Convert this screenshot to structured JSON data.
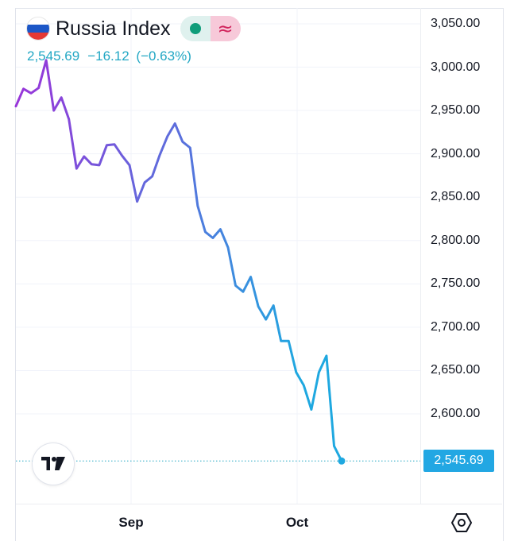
{
  "header": {
    "title": "Russia Index",
    "flag_icon": "russia-flag-icon",
    "status_icon": "market-open-dot-icon",
    "delayed_icon": "delayed-data-icon",
    "delayed_symbol": "≈",
    "last": "2,545.69",
    "change": "−16.12",
    "change_pct": "(−0.63%)"
  },
  "colors": {
    "line_start": "#9b33d9",
    "line_end": "#1fa8e0",
    "quote_text": "#22a7c4",
    "price_label_bg": "#22a7e3"
  },
  "chart_data": {
    "type": "line",
    "title": "Russia Index",
    "xlabel": "",
    "ylabel": "",
    "x_ticks": [
      "Sep",
      "Oct"
    ],
    "y_ticks": [
      "3,050.00",
      "3,000.00",
      "2,950.00",
      "2,900.00",
      "2,850.00",
      "2,800.00",
      "2,750.00",
      "2,700.00",
      "2,650.00",
      "2,600.00"
    ],
    "ylim": [
      2525,
      3060
    ],
    "grid": true,
    "last_value": 2545.69,
    "last_label": "2,545.69",
    "series": [
      {
        "values": [
          2955,
          2975,
          2970,
          2976,
          3008,
          2950,
          2965,
          2940,
          2883,
          2897,
          2888,
          2887,
          2910,
          2911,
          2898,
          2887,
          2845,
          2867,
          2874,
          2899,
          2920,
          2935,
          2914,
          2907,
          2840,
          2810,
          2803,
          2813,
          2792,
          2748,
          2741,
          2758,
          2724,
          2709,
          2725,
          2684,
          2684,
          2648,
          2633,
          2605,
          2648,
          2667,
          2563,
          2545.69
        ]
      }
    ]
  },
  "toolbar": {
    "logo_icon": "tradingview-logo-icon",
    "settings_icon": "settings-hexagon-icon"
  }
}
